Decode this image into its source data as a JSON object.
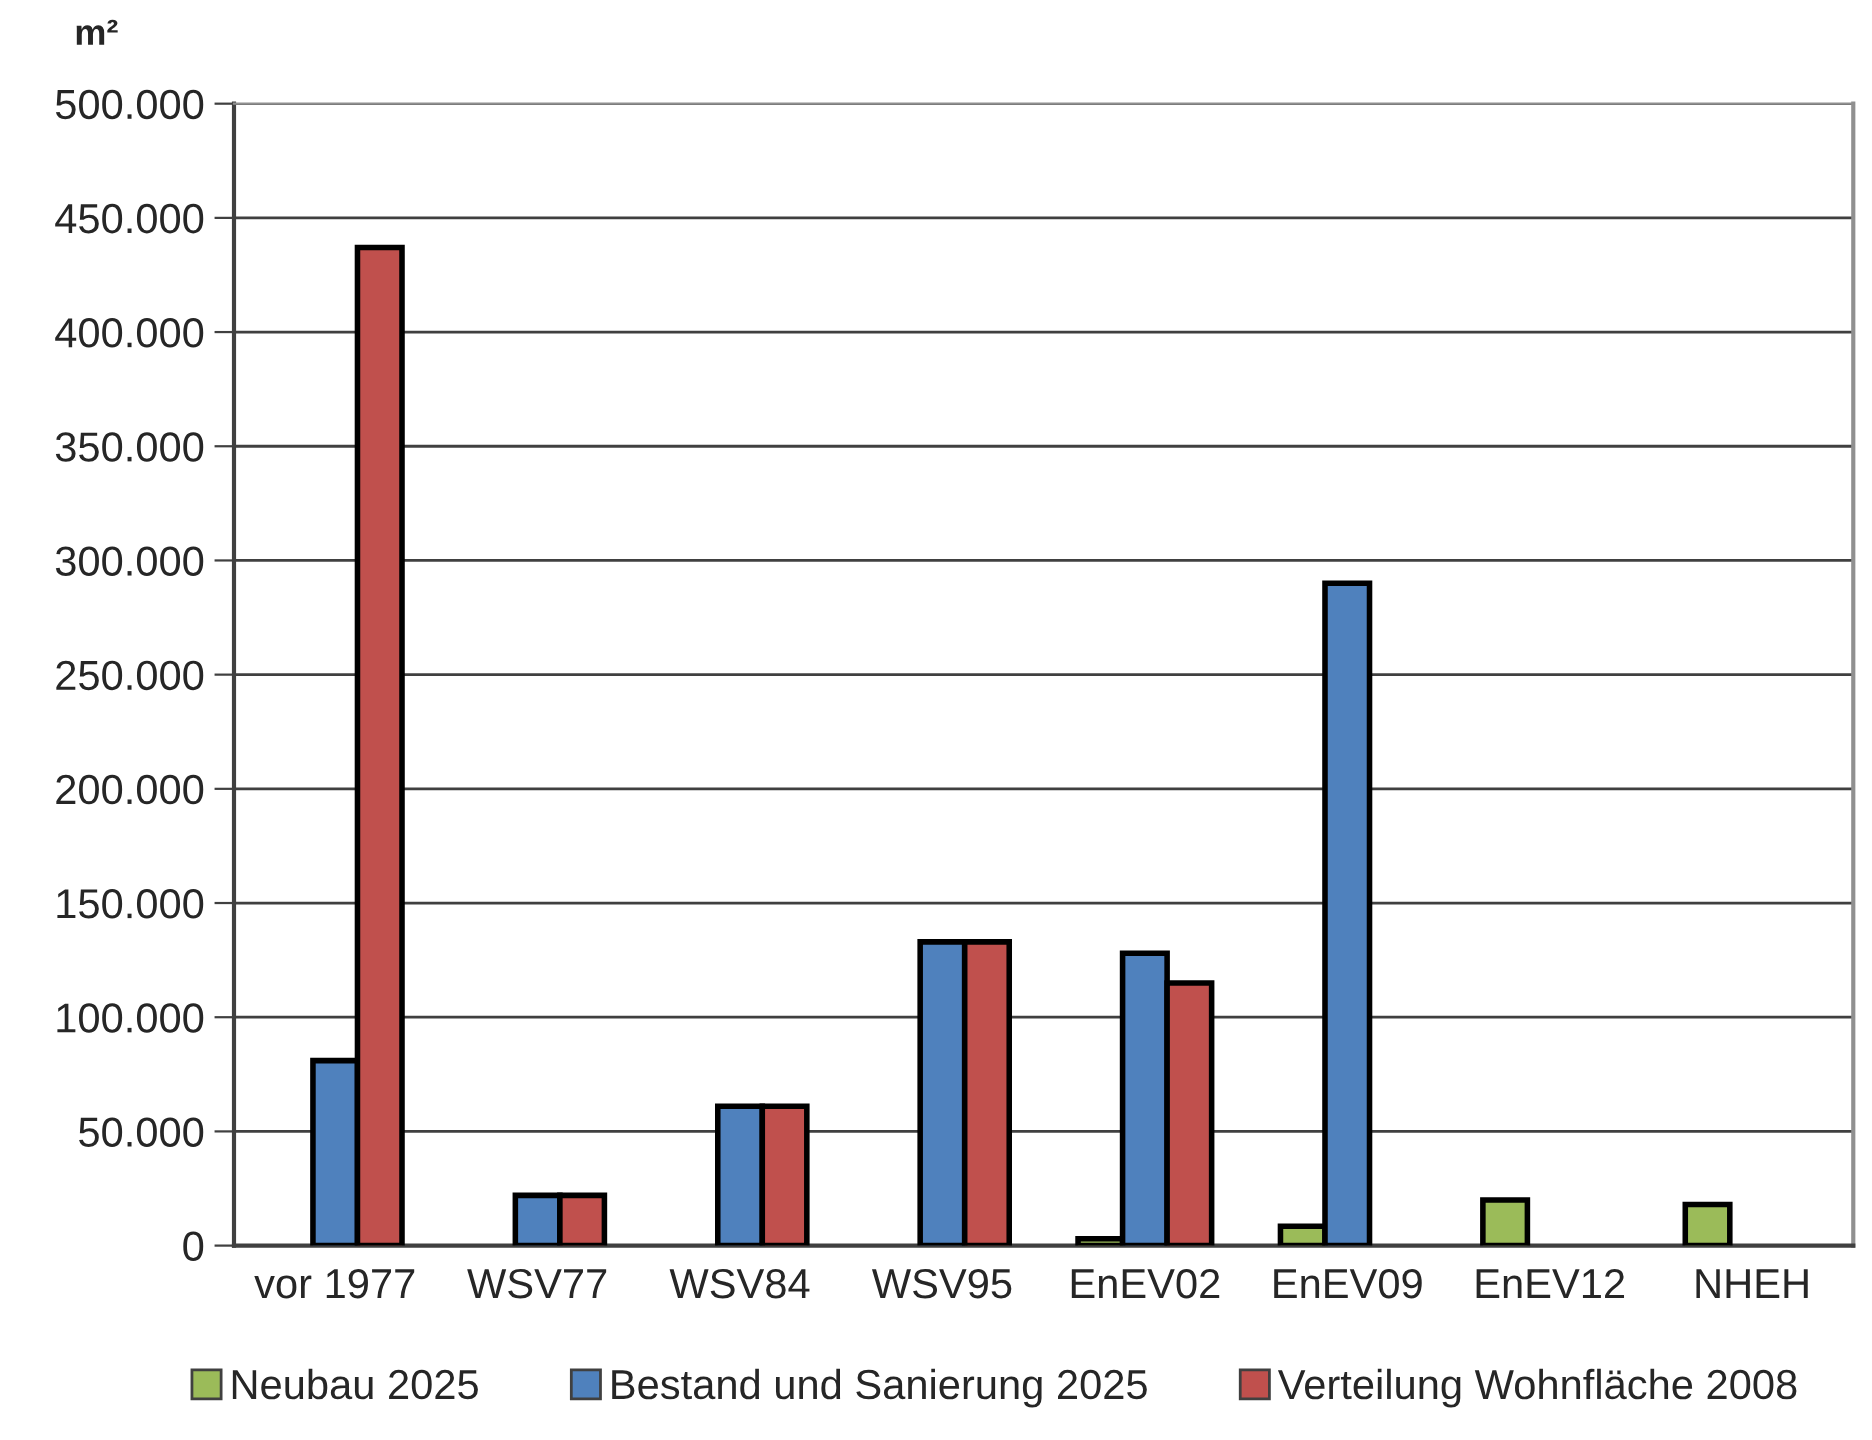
{
  "chart_data": {
    "type": "bar",
    "ylabel": "m²",
    "categories": [
      "vor 1977",
      "WSV77",
      "WSV84",
      "WSV95",
      "EnEV02",
      "EnEV09",
      "EnEV12",
      "NHEH"
    ],
    "series": [
      {
        "name": "Neubau 2025",
        "color": "#9bbb59",
        "values": [
          null,
          null,
          null,
          null,
          3000,
          8500,
          20000,
          18000
        ]
      },
      {
        "name": "Bestand und Sanierung 2025",
        "color": "#4f81bd",
        "values": [
          81000,
          22000,
          61000,
          133000,
          128000,
          290000,
          null,
          null
        ]
      },
      {
        "name": "Verteilung Wohnfläche 2008",
        "color": "#c0504d",
        "values": [
          437000,
          22000,
          61000,
          133000,
          115000,
          null,
          null,
          null
        ]
      }
    ],
    "ylim": [
      0,
      500000
    ],
    "yticks": [
      0,
      {
        "value": 50000,
        "label": "50.000"
      },
      {
        "value": 100000,
        "label": "100.000"
      },
      {
        "value": 150000,
        "label": "150.000"
      },
      {
        "value": 200000,
        "label": "200.000"
      },
      {
        "value": 250000,
        "label": "250.000"
      },
      {
        "value": 300000,
        "label": "300.000"
      },
      {
        "value": 350000,
        "label": "350.000"
      },
      {
        "value": 400000,
        "label": "400.000"
      },
      {
        "value": 450000,
        "label": "450.000"
      },
      {
        "value": 500000,
        "label": "500.000"
      }
    ],
    "grid": "y",
    "legend": "bottom"
  }
}
